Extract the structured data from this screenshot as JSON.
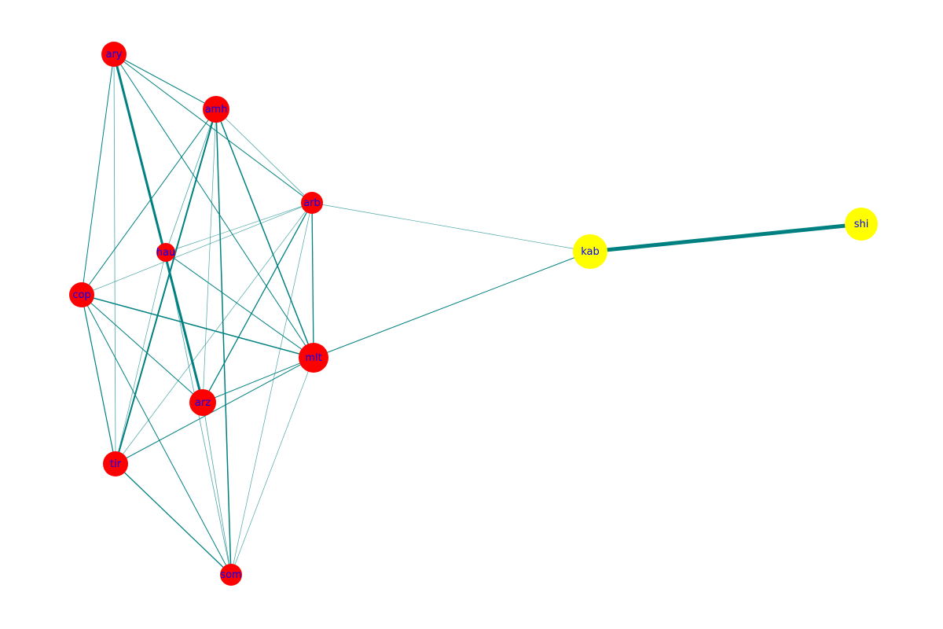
{
  "colors": {
    "edge": "#008080",
    "group_a": "#ff0000",
    "group_b": "#ffff00",
    "label": "#0000ff"
  },
  "nodes": [
    {
      "id": "ary",
      "group": "a"
    },
    {
      "id": "amh",
      "group": "a"
    },
    {
      "id": "arb",
      "group": "a"
    },
    {
      "id": "hau",
      "group": "a"
    },
    {
      "id": "cop",
      "group": "a"
    },
    {
      "id": "mlt",
      "group": "a"
    },
    {
      "id": "arz",
      "group": "a"
    },
    {
      "id": "tir",
      "group": "a"
    },
    {
      "id": "som",
      "group": "a"
    },
    {
      "id": "kab",
      "group": "b"
    },
    {
      "id": "shi",
      "group": "b"
    }
  ],
  "edges": [
    [
      "ary",
      "amh",
      1
    ],
    [
      "ary",
      "arb",
      1
    ],
    [
      "ary",
      "mlt",
      1
    ],
    [
      "ary",
      "arz",
      3
    ],
    [
      "ary",
      "cop",
      1
    ],
    [
      "ary",
      "tir",
      0.8
    ],
    [
      "amh",
      "cop",
      1
    ],
    [
      "amh",
      "hau",
      0.8
    ],
    [
      "amh",
      "tir",
      2
    ],
    [
      "amh",
      "som",
      1.5
    ],
    [
      "amh",
      "mlt",
      1.5
    ],
    [
      "amh",
      "arb",
      0.8
    ],
    [
      "amh",
      "arz",
      0.7
    ],
    [
      "arb",
      "hau",
      0.7
    ],
    [
      "arb",
      "cop",
      0.7
    ],
    [
      "arb",
      "mlt",
      1.3
    ],
    [
      "arb",
      "arz",
      1.3
    ],
    [
      "arb",
      "tir",
      0.7
    ],
    [
      "arb",
      "som",
      0.7
    ],
    [
      "arb",
      "kab",
      0.7
    ],
    [
      "hau",
      "mlt",
      1
    ],
    [
      "hau",
      "tir",
      0.7
    ],
    [
      "hau",
      "som",
      0.8
    ],
    [
      "cop",
      "mlt",
      1.5
    ],
    [
      "cop",
      "arz",
      1
    ],
    [
      "cop",
      "tir",
      1.2
    ],
    [
      "cop",
      "som",
      1
    ],
    [
      "mlt",
      "arz",
      1
    ],
    [
      "mlt",
      "tir",
      1
    ],
    [
      "mlt",
      "som",
      0.7
    ],
    [
      "mlt",
      "kab",
      1
    ],
    [
      "tir",
      "som",
      1.3
    ],
    [
      "arz",
      "som",
      0.8
    ],
    [
      "kab",
      "shi",
      5
    ]
  ]
}
